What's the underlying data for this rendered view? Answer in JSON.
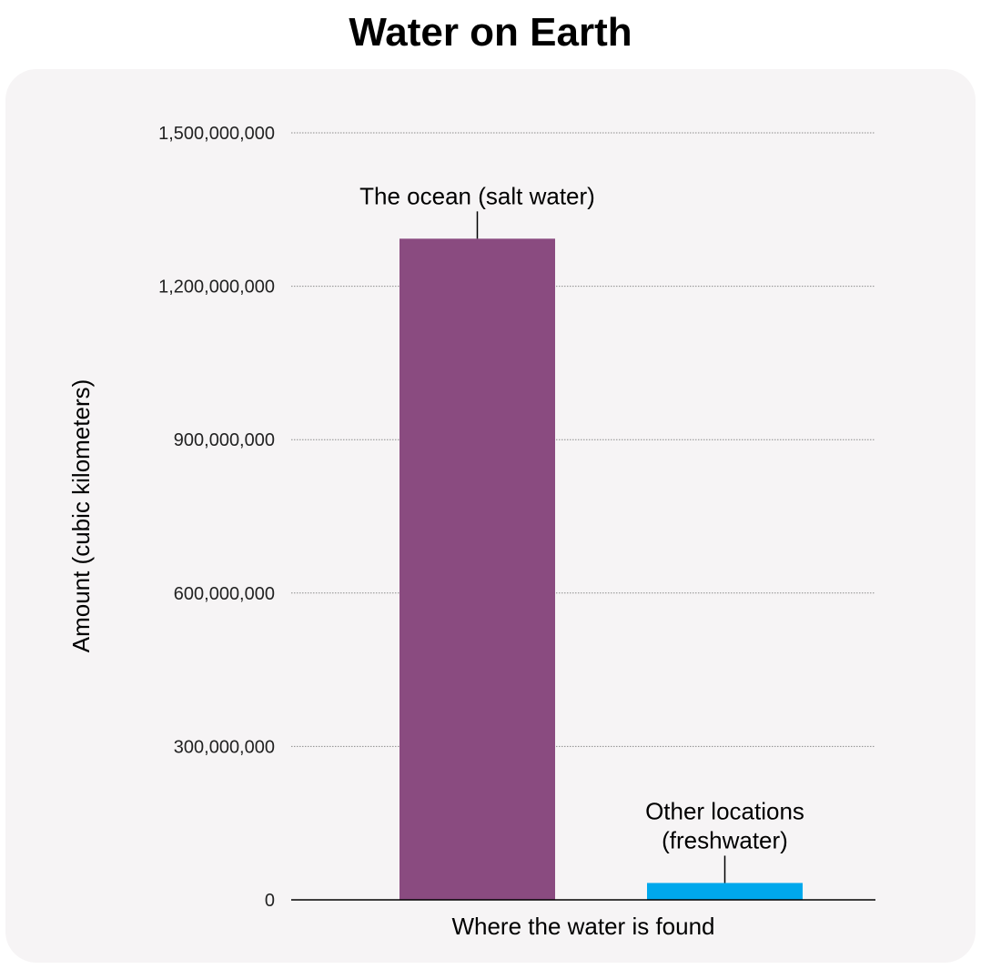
{
  "chart_data": {
    "type": "bar",
    "title": "Water on Earth",
    "xlabel": "Where the water is found",
    "ylabel": "Amount (cubic kilometers)",
    "ylim": [
      0,
      1500000000
    ],
    "yticks": [
      0,
      300000000,
      600000000,
      900000000,
      1200000000,
      1500000000
    ],
    "ytick_labels": [
      "0",
      "300,000,000",
      "600,000,000",
      "900,000,000",
      "1,200,000,000",
      "1,500,000,000"
    ],
    "grid": true,
    "categories": [
      "The ocean (salt water)",
      "Other locations (freshwater)"
    ],
    "category_labels": [
      [
        "The ocean (salt water)"
      ],
      [
        "Other locations",
        "(freshwater)"
      ]
    ],
    "values": [
      1293000000,
      33000000
    ],
    "colors": [
      "#8a4b80",
      "#00a8ec"
    ]
  }
}
